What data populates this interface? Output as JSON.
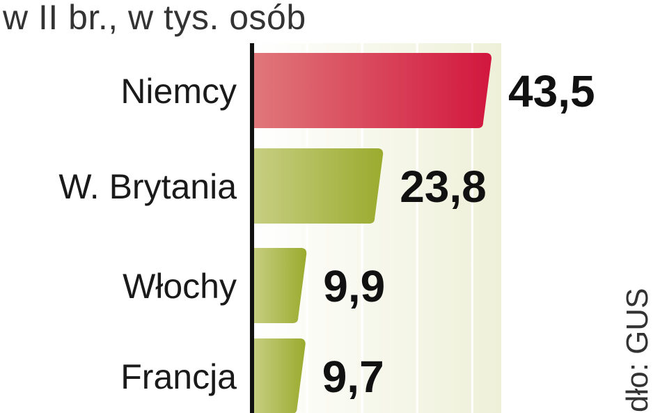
{
  "chart_data": {
    "type": "bar",
    "orientation": "horizontal",
    "title": "",
    "subtitle": "w II br., w tys. osób",
    "xlabel": "",
    "ylabel": "",
    "categories": [
      "Niemcy",
      "W. Brytania",
      "Włochy",
      "Francja"
    ],
    "values": [
      43.5,
      23.8,
      9.9,
      9.7
    ],
    "value_labels": [
      "43,5",
      "23,8",
      "9,9",
      "9,7"
    ],
    "xlim": [
      0,
      45
    ],
    "grid": true,
    "legend": "none",
    "colors": {
      "highlight": "#d2173e",
      "highlight_light": "#e0787a",
      "bar": "#9aab2e",
      "bar_light": "#c8cf83",
      "background_band": "#eef0d8",
      "axis": "#111111"
    },
    "source": "dło: GUS"
  }
}
